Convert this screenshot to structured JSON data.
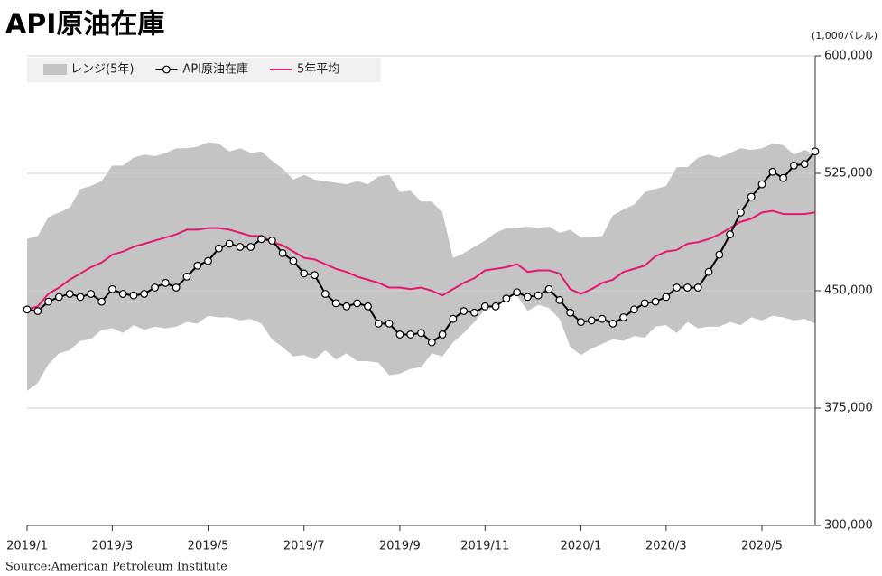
{
  "chart_data": {
    "type": "line",
    "title": "API原油在庫",
    "unit_label": "(1,000バレル)",
    "source": "Source:American Petroleum Institute",
    "categories": [
      "2019/1",
      null,
      null,
      null,
      null,
      null,
      null,
      null,
      "2019/3",
      null,
      null,
      null,
      null,
      null,
      null,
      null,
      null,
      "2019/5",
      null,
      null,
      null,
      null,
      null,
      null,
      null,
      null,
      "2019/7",
      null,
      null,
      null,
      null,
      null,
      null,
      null,
      null,
      "2019/9",
      null,
      null,
      null,
      null,
      null,
      null,
      null,
      "2019/11",
      null,
      null,
      null,
      null,
      null,
      null,
      null,
      null,
      "2020/1",
      null,
      null,
      null,
      null,
      null,
      null,
      null,
      "2020/3",
      null,
      null,
      null,
      null,
      null,
      null,
      null,
      null,
      "2020/5",
      null,
      null,
      null,
      null,
      null
    ],
    "ylim": [
      300000,
      600000
    ],
    "yticks": [
      {
        "value": 300000,
        "label": "300,000"
      },
      {
        "value": 375000,
        "label": "375,000"
      },
      {
        "value": 450000,
        "label": "450,000"
      },
      {
        "value": 525000,
        "label": "525,000"
      },
      {
        "value": 600000,
        "label": "600,000"
      }
    ],
    "grid": true,
    "legend": "top-left",
    "series": [
      {
        "name": "レンジ(5年)",
        "color": "#c4c4c4",
        "type": "range",
        "low": [
          386000,
          391000,
          403000,
          410000,
          412000,
          418000,
          419000,
          425000,
          426000,
          423000,
          428000,
          425000,
          427000,
          426000,
          427000,
          430000,
          429000,
          434000,
          433000,
          433000,
          431000,
          432000,
          429000,
          419000,
          414000,
          408000,
          409000,
          406000,
          412000,
          406000,
          410000,
          405000,
          405000,
          404000,
          396000,
          397000,
          400000,
          401000,
          410000,
          408000,
          417000,
          423000,
          430000,
          438000,
          440000,
          447000,
          447000,
          437000,
          441000,
          439000,
          432000,
          414000,
          409000,
          413000,
          416000,
          419000,
          418000,
          421000,
          420000,
          427000,
          428000,
          423000,
          430000,
          426000,
          427000,
          427000,
          430000,
          428000,
          433000,
          431000,
          434000,
          433000,
          431000,
          432000,
          429000
        ],
        "high": [
          483000,
          485000,
          497000,
          500000,
          503000,
          515000,
          517000,
          520000,
          530000,
          530000,
          535000,
          537000,
          536000,
          538000,
          541000,
          541000,
          542000,
          545000,
          544000,
          539000,
          541000,
          538000,
          539000,
          533000,
          528000,
          521000,
          524000,
          521000,
          520000,
          519000,
          518000,
          520000,
          518000,
          523000,
          524000,
          513000,
          514000,
          507000,
          507000,
          500000,
          471000,
          474000,
          478000,
          482000,
          487000,
          490000,
          490000,
          491000,
          490000,
          491000,
          487000,
          489000,
          484000,
          484000,
          485000,
          498000,
          502000,
          505000,
          513000,
          515000,
          517000,
          529000,
          529000,
          535000,
          537000,
          535000,
          538000,
          541000,
          540000,
          541000,
          544000,
          543000,
          537000,
          540000,
          537000
        ]
      },
      {
        "name": "API原油在庫",
        "color": "#000000",
        "markers": true,
        "values": [
          438000,
          437000,
          443000,
          446000,
          448000,
          446000,
          448000,
          443000,
          451000,
          448000,
          447000,
          448000,
          452000,
          455000,
          452000,
          459000,
          466000,
          469000,
          477000,
          480000,
          478000,
          478000,
          483000,
          482000,
          474000,
          469000,
          461000,
          460000,
          448000,
          442000,
          440000,
          442000,
          440000,
          429000,
          429000,
          422000,
          422000,
          423000,
          417000,
          422000,
          432000,
          437000,
          436000,
          440000,
          440000,
          445000,
          449000,
          446000,
          447000,
          451000,
          444000,
          436000,
          430000,
          431000,
          432000,
          429000,
          433000,
          438000,
          442000,
          443000,
          446000,
          452000,
          452000,
          452000,
          462000,
          473000,
          486000,
          500000,
          510000,
          518000,
          526000,
          522000,
          530000,
          531000,
          539000
        ]
      },
      {
        "name": "5年平均",
        "color": "#e6186e",
        "values": [
          438000,
          440000,
          448000,
          452000,
          457000,
          461000,
          465000,
          468000,
          473000,
          475000,
          478000,
          480000,
          482000,
          484000,
          486000,
          489000,
          489000,
          490000,
          490000,
          489000,
          487000,
          485000,
          485000,
          481000,
          479000,
          475000,
          471000,
          470000,
          467000,
          464000,
          462000,
          459000,
          457000,
          455000,
          452000,
          452000,
          451000,
          452000,
          450000,
          447000,
          451000,
          455000,
          458000,
          463000,
          464000,
          465000,
          467000,
          462000,
          463000,
          463000,
          461000,
          451000,
          448000,
          451000,
          455000,
          457000,
          462000,
          464000,
          466000,
          472000,
          475000,
          476000,
          480000,
          481000,
          483000,
          486000,
          490000,
          494000,
          496000,
          500000,
          501000,
          499000,
          499000,
          499000,
          500000
        ]
      }
    ]
  }
}
